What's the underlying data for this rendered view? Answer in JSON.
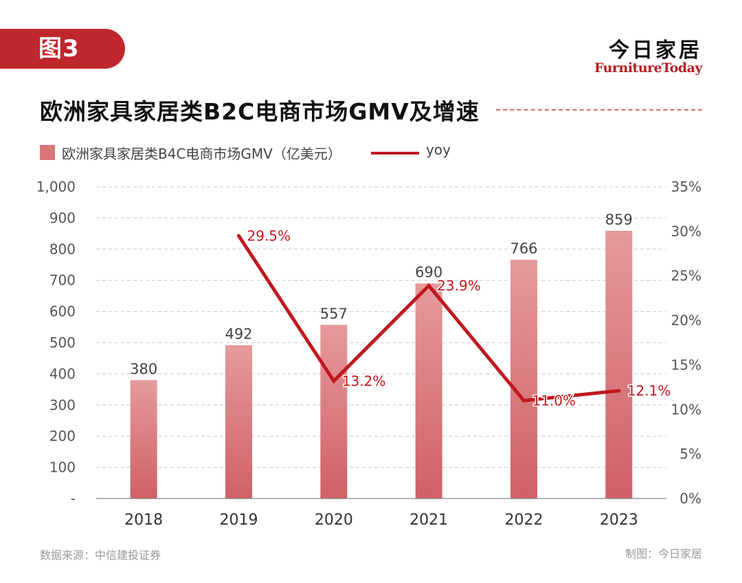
{
  "header": {
    "figure_tag": "图3",
    "brand_cn": "今日家居",
    "brand_en": "FurnitureToday"
  },
  "chart_data": {
    "type": "bar",
    "title": "欧洲家具家居类B2C电商市场GMV及增速",
    "categories": [
      "2018",
      "2019",
      "2020",
      "2021",
      "2022",
      "2023"
    ],
    "series": [
      {
        "name": "欧洲家具家居类B4C电商市场GMV（亿美元）",
        "type": "bar",
        "axis": "left",
        "values": [
          380,
          492,
          557,
          690,
          766,
          859
        ],
        "labels": [
          "380",
          "492",
          "557",
          "690",
          "766",
          "859"
        ],
        "color": "#d9767a"
      },
      {
        "name": "yoy",
        "type": "line",
        "axis": "right",
        "values": [
          null,
          29.5,
          13.2,
          23.9,
          11.0,
          12.1
        ],
        "labels": [
          "",
          "29.5%",
          "13.2%",
          "23.9%",
          "11.0%",
          "12.1%"
        ],
        "color": "#c0181e"
      }
    ],
    "left_axis": {
      "ylim": [
        0,
        1000
      ],
      "ticks": [
        0,
        100,
        200,
        300,
        400,
        500,
        600,
        700,
        800,
        900,
        1000
      ],
      "tick_labels": [
        "-",
        "100",
        "200",
        "300",
        "400",
        "500",
        "600",
        "700",
        "800",
        "900",
        "1,000"
      ]
    },
    "right_axis": {
      "ylim": [
        0,
        35
      ],
      "ticks": [
        0,
        5,
        10,
        15,
        20,
        25,
        30,
        35
      ],
      "tick_labels": [
        "0%",
        "5%",
        "10%",
        "15%",
        "20%",
        "25%",
        "30%",
        "35%"
      ]
    },
    "grid": true,
    "legend_position": "top-left"
  },
  "footer": {
    "source": "数据来源：中信建投证券",
    "made_by": "制图：今日家居"
  }
}
